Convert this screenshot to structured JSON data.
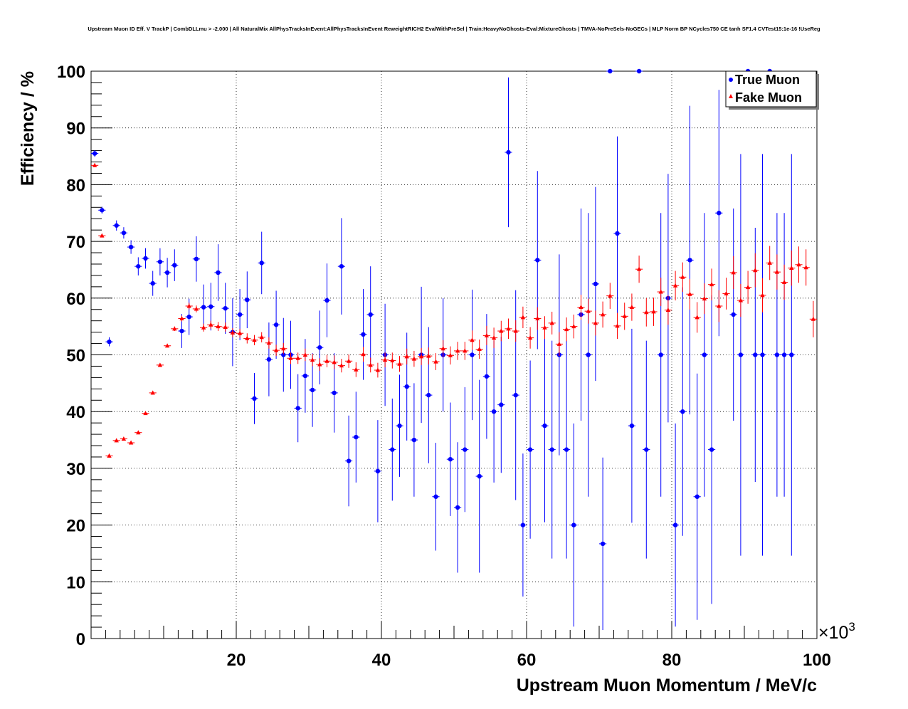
{
  "chart_data": {
    "type": "scatter",
    "title": "Upstream Muon ID Eff. V TrackP | CombDLLmu > -2.000 | All NaturalMix AllPhysTracksInEvent:AllPhysTracksInEvent ReweightRICH2 EvalWithPreSel | Train:HeavyNoGhosts-Eval:MixtureGhosts | TMVA-NoPreSels-NoGECs | MLP Norm BP NCycles750 CE tanh SF1.4 CVTest15:1e-16 !UseReg",
    "xlabel": "Upstream Muon Momentum / MeV/c",
    "ylabel": "Efficiency / %",
    "x_multiplier": "×10",
    "x_multiplier_exp": "3",
    "xlim": [
      0,
      100
    ],
    "ylim": [
      0,
      100
    ],
    "x_ticks": [
      "20",
      "40",
      "60",
      "80",
      "100"
    ],
    "y_ticks": [
      "0",
      "10",
      "20",
      "30",
      "40",
      "50",
      "60",
      "70",
      "80",
      "90",
      "100"
    ],
    "grid": true,
    "legend_position": "top-right",
    "bin_width": 1,
    "series": [
      {
        "name": "True Muon",
        "color": "#0000ff",
        "marker": "circle",
        "points": [
          {
            "x": 0.5,
            "y": 85.5,
            "err": 0.6
          },
          {
            "x": 1.5,
            "y": 75.5,
            "err": 0.6
          },
          {
            "x": 2.5,
            "y": 52.3,
            "err": 0.8
          },
          {
            "x": 3.5,
            "y": 72.8,
            "err": 0.9
          },
          {
            "x": 4.5,
            "y": 71.5,
            "err": 1.0
          },
          {
            "x": 5.5,
            "y": 69.0,
            "err": 1.2
          },
          {
            "x": 6.5,
            "y": 65.6,
            "err": 1.6
          },
          {
            "x": 7.5,
            "y": 67.0,
            "err": 1.8
          },
          {
            "x": 8.5,
            "y": 62.6,
            "err": 2.2
          },
          {
            "x": 9.5,
            "y": 66.4,
            "err": 2.4
          },
          {
            "x": 10.5,
            "y": 64.5,
            "err": 2.6
          },
          {
            "x": 11.5,
            "y": 65.8,
            "err": 2.8
          },
          {
            "x": 12.5,
            "y": 54.2,
            "err": 3.0
          },
          {
            "x": 13.5,
            "y": 56.7,
            "err": 3.2
          },
          {
            "x": 14.5,
            "y": 66.9,
            "err": 4.0
          },
          {
            "x": 15.5,
            "y": 58.4,
            "err": 4.0
          },
          {
            "x": 16.5,
            "y": 58.5,
            "err": 4.2
          },
          {
            "x": 17.5,
            "y": 64.5,
            "err": 5.0
          },
          {
            "x": 18.5,
            "y": 58.2,
            "err": 4.5
          },
          {
            "x": 19.5,
            "y": 54.0,
            "err": 6.0
          },
          {
            "x": 20.5,
            "y": 57.1,
            "err": 4.5
          },
          {
            "x": 21.5,
            "y": 59.7,
            "err": 5.0
          },
          {
            "x": 22.5,
            "y": 42.3,
            "err": 4.5
          },
          {
            "x": 23.5,
            "y": 66.2,
            "err": 5.5
          },
          {
            "x": 24.5,
            "y": 49.2,
            "err": 6.5
          },
          {
            "x": 25.5,
            "y": 55.3,
            "err": 6.0
          },
          {
            "x": 26.5,
            "y": 50.0,
            "err": 6.5
          },
          {
            "x": 27.5,
            "y": 50.0,
            "err": 6.0
          },
          {
            "x": 28.5,
            "y": 40.6,
            "err": 6.0
          },
          {
            "x": 29.5,
            "y": 46.3,
            "err": 6.5
          },
          {
            "x": 30.5,
            "y": 43.8,
            "err": 6.5
          },
          {
            "x": 31.5,
            "y": 51.3,
            "err": 6.5
          },
          {
            "x": 32.5,
            "y": 59.6,
            "err": 6.5
          },
          {
            "x": 33.5,
            "y": 43.3,
            "err": 7.0
          },
          {
            "x": 34.5,
            "y": 65.6,
            "err": 8.5
          },
          {
            "x": 35.5,
            "y": 31.3,
            "err": 8.0
          },
          {
            "x": 36.5,
            "y": 35.5,
            "err": 8.0
          },
          {
            "x": 37.5,
            "y": 53.6,
            "err": 8.0
          },
          {
            "x": 38.5,
            "y": 57.1,
            "err": 8.5
          },
          {
            "x": 39.5,
            "y": 29.5,
            "err": 9.0
          },
          {
            "x": 40.5,
            "y": 50.0,
            "err": 9.0
          },
          {
            "x": 41.5,
            "y": 33.3,
            "err": 9.0
          },
          {
            "x": 42.5,
            "y": 37.5,
            "err": 9.0
          },
          {
            "x": 43.5,
            "y": 44.4,
            "err": 9.5
          },
          {
            "x": 44.5,
            "y": 35.0,
            "err": 10.0
          },
          {
            "x": 45.5,
            "y": 50.0,
            "err": 12.0
          },
          {
            "x": 46.5,
            "y": 42.9,
            "err": 12.0
          },
          {
            "x": 47.5,
            "y": 25.0,
            "err": 9.5
          },
          {
            "x": 48.5,
            "y": 50.0,
            "err": 10.0
          },
          {
            "x": 49.5,
            "y": 31.6,
            "err": 10.0
          },
          {
            "x": 50.5,
            "y": 23.1,
            "err": 11.5
          },
          {
            "x": 51.5,
            "y": 33.3,
            "err": 11.0
          },
          {
            "x": 52.5,
            "y": 50.0,
            "err": 11.5
          },
          {
            "x": 53.5,
            "y": 28.6,
            "err": 17.0
          },
          {
            "x": 54.5,
            "y": 46.2,
            "err": 11.0
          },
          {
            "x": 55.5,
            "y": 40.0,
            "err": 12.5
          },
          {
            "x": 56.5,
            "y": 41.2,
            "err": 12.0
          },
          {
            "x": 57.5,
            "y": 85.7,
            "err": 13.2
          },
          {
            "x": 58.5,
            "y": 42.9,
            "err": 18.5
          },
          {
            "x": 59.5,
            "y": 20.0,
            "err": 12.6
          },
          {
            "x": 60.5,
            "y": 33.3,
            "err": 15.7
          },
          {
            "x": 61.5,
            "y": 66.7,
            "err": 15.7
          },
          {
            "x": 62.5,
            "y": 37.5,
            "err": 17.0
          },
          {
            "x": 63.5,
            "y": 33.3,
            "err": 19.2
          },
          {
            "x": 64.5,
            "y": 50.0,
            "err": 17.7
          },
          {
            "x": 65.5,
            "y": 33.3,
            "err": 19.2
          },
          {
            "x": 66.5,
            "y": 20.0,
            "err": 17.9
          },
          {
            "x": 67.5,
            "y": 57.1,
            "err": 18.7
          },
          {
            "x": 68.5,
            "y": 50.0,
            "err": 25.0
          },
          {
            "x": 69.5,
            "y": 62.5,
            "err": 17.1
          },
          {
            "x": 70.5,
            "y": 16.7,
            "err": 15.2
          },
          {
            "x": 71.5,
            "y": 100.0,
            "err": 0
          },
          {
            "x": 72.5,
            "y": 71.4,
            "err": 17.1
          },
          {
            "x": 74.5,
            "y": 37.5,
            "err": 17.1
          },
          {
            "x": 75.5,
            "y": 100.0,
            "err": 0
          },
          {
            "x": 76.5,
            "y": 33.3,
            "err": 19.2
          },
          {
            "x": 78.5,
            "y": 50.0,
            "err": 25.0
          },
          {
            "x": 79.5,
            "y": 60.0,
            "err": 21.9
          },
          {
            "x": 80.5,
            "y": 20.0,
            "err": 17.9
          },
          {
            "x": 81.5,
            "y": 40.0,
            "err": 21.9
          },
          {
            "x": 82.5,
            "y": 66.7,
            "err": 27.2
          },
          {
            "x": 83.5,
            "y": 25.0,
            "err": 21.7
          },
          {
            "x": 84.5,
            "y": 50.0,
            "err": 25.0
          },
          {
            "x": 85.5,
            "y": 33.3,
            "err": 27.2
          },
          {
            "x": 86.5,
            "y": 75.0,
            "err": 21.7
          },
          {
            "x": 88.5,
            "y": 57.1,
            "err": 18.7
          },
          {
            "x": 89.5,
            "y": 50.0,
            "err": 35.4
          },
          {
            "x": 90.5,
            "y": 100.0,
            "err": 0
          },
          {
            "x": 91.5,
            "y": 50.0,
            "err": 22.4
          },
          {
            "x": 92.5,
            "y": 50.0,
            "err": 35.4
          },
          {
            "x": 93.5,
            "y": 100.0,
            "err": 0
          },
          {
            "x": 94.5,
            "y": 50.0,
            "err": 25.0
          },
          {
            "x": 95.5,
            "y": 50.0,
            "err": 25.0
          },
          {
            "x": 96.5,
            "y": 50.0,
            "err": 35.4
          }
        ]
      },
      {
        "name": "Fake Muon",
        "color": "#ff0000",
        "marker": "triangle",
        "points": [
          {
            "x": 0.5,
            "y": 83.4,
            "err": 0.3
          },
          {
            "x": 1.5,
            "y": 71.0,
            "err": 0.3
          },
          {
            "x": 2.5,
            "y": 32.2,
            "err": 0.3
          },
          {
            "x": 3.5,
            "y": 34.9,
            "err": 0.3
          },
          {
            "x": 4.5,
            "y": 35.2,
            "err": 0.3
          },
          {
            "x": 5.5,
            "y": 34.5,
            "err": 0.3
          },
          {
            "x": 6.5,
            "y": 36.3,
            "err": 0.3
          },
          {
            "x": 7.5,
            "y": 39.7,
            "err": 0.3
          },
          {
            "x": 8.5,
            "y": 43.3,
            "err": 0.3
          },
          {
            "x": 9.5,
            "y": 48.2,
            "err": 0.3
          },
          {
            "x": 10.5,
            "y": 51.6,
            "err": 0.3
          },
          {
            "x": 11.5,
            "y": 54.6,
            "err": 0.4
          },
          {
            "x": 12.5,
            "y": 56.4,
            "err": 0.5
          },
          {
            "x": 13.5,
            "y": 58.6,
            "err": 0.6
          },
          {
            "x": 14.5,
            "y": 58.1,
            "err": 0.6
          },
          {
            "x": 15.5,
            "y": 54.8,
            "err": 0.7
          },
          {
            "x": 16.5,
            "y": 55.3,
            "err": 0.7
          },
          {
            "x": 17.5,
            "y": 55.0,
            "err": 0.8
          },
          {
            "x": 18.5,
            "y": 54.9,
            "err": 0.8
          },
          {
            "x": 19.5,
            "y": 53.9,
            "err": 0.8
          },
          {
            "x": 20.5,
            "y": 53.8,
            "err": 0.8
          },
          {
            "x": 21.5,
            "y": 52.9,
            "err": 0.9
          },
          {
            "x": 22.5,
            "y": 52.6,
            "err": 0.9
          },
          {
            "x": 23.5,
            "y": 53.1,
            "err": 0.9
          },
          {
            "x": 24.5,
            "y": 52.1,
            "err": 1.0
          },
          {
            "x": 25.5,
            "y": 50.8,
            "err": 1.0
          },
          {
            "x": 26.5,
            "y": 51.1,
            "err": 1.0
          },
          {
            "x": 27.5,
            "y": 49.4,
            "err": 1.0
          },
          {
            "x": 28.5,
            "y": 49.4,
            "err": 1.0
          },
          {
            "x": 29.5,
            "y": 50.0,
            "err": 1.1
          },
          {
            "x": 30.5,
            "y": 49.1,
            "err": 1.1
          },
          {
            "x": 31.5,
            "y": 48.3,
            "err": 1.1
          },
          {
            "x": 32.5,
            "y": 48.9,
            "err": 1.1
          },
          {
            "x": 33.5,
            "y": 48.7,
            "err": 1.2
          },
          {
            "x": 34.5,
            "y": 48.1,
            "err": 1.2
          },
          {
            "x": 35.5,
            "y": 48.9,
            "err": 1.2
          },
          {
            "x": 36.5,
            "y": 47.4,
            "err": 1.3
          },
          {
            "x": 37.5,
            "y": 50.1,
            "err": 1.3
          },
          {
            "x": 38.5,
            "y": 48.2,
            "err": 1.3
          },
          {
            "x": 39.5,
            "y": 47.3,
            "err": 1.3
          },
          {
            "x": 40.5,
            "y": 49.1,
            "err": 1.3
          },
          {
            "x": 41.5,
            "y": 49.0,
            "err": 1.4
          },
          {
            "x": 42.5,
            "y": 48.4,
            "err": 1.4
          },
          {
            "x": 43.5,
            "y": 49.7,
            "err": 1.4
          },
          {
            "x": 44.5,
            "y": 49.3,
            "err": 1.4
          },
          {
            "x": 45.5,
            "y": 49.7,
            "err": 1.5
          },
          {
            "x": 46.5,
            "y": 49.8,
            "err": 1.5
          },
          {
            "x": 47.5,
            "y": 48.8,
            "err": 1.5
          },
          {
            "x": 48.5,
            "y": 51.1,
            "err": 1.5
          },
          {
            "x": 49.5,
            "y": 49.9,
            "err": 1.6
          },
          {
            "x": 50.5,
            "y": 50.7,
            "err": 1.6
          },
          {
            "x": 51.5,
            "y": 50.7,
            "err": 1.6
          },
          {
            "x": 52.5,
            "y": 52.6,
            "err": 1.7
          },
          {
            "x": 53.5,
            "y": 51.0,
            "err": 1.7
          },
          {
            "x": 54.5,
            "y": 53.4,
            "err": 1.7
          },
          {
            "x": 55.5,
            "y": 53.0,
            "err": 1.8
          },
          {
            "x": 56.5,
            "y": 54.2,
            "err": 1.8
          },
          {
            "x": 57.5,
            "y": 54.6,
            "err": 1.8
          },
          {
            "x": 58.5,
            "y": 54.2,
            "err": 1.9
          },
          {
            "x": 59.5,
            "y": 56.6,
            "err": 1.9
          },
          {
            "x": 60.5,
            "y": 53.0,
            "err": 1.9
          },
          {
            "x": 61.5,
            "y": 56.4,
            "err": 2.0
          },
          {
            "x": 62.5,
            "y": 54.8,
            "err": 2.0
          },
          {
            "x": 63.5,
            "y": 55.6,
            "err": 2.0
          },
          {
            "x": 64.5,
            "y": 51.9,
            "err": 2.1
          },
          {
            "x": 65.5,
            "y": 54.5,
            "err": 2.1
          },
          {
            "x": 66.5,
            "y": 55.0,
            "err": 2.1
          },
          {
            "x": 67.5,
            "y": 58.4,
            "err": 2.2
          },
          {
            "x": 68.5,
            "y": 57.7,
            "err": 2.2
          },
          {
            "x": 69.5,
            "y": 55.6,
            "err": 2.2
          },
          {
            "x": 70.5,
            "y": 57.1,
            "err": 2.3
          },
          {
            "x": 71.5,
            "y": 60.4,
            "err": 2.3
          },
          {
            "x": 72.5,
            "y": 55.1,
            "err": 2.3
          },
          {
            "x": 73.5,
            "y": 56.8,
            "err": 2.4
          },
          {
            "x": 74.5,
            "y": 58.4,
            "err": 2.4
          },
          {
            "x": 75.5,
            "y": 65.1,
            "err": 2.4
          },
          {
            "x": 76.5,
            "y": 57.5,
            "err": 2.5
          },
          {
            "x": 77.5,
            "y": 57.6,
            "err": 2.5
          },
          {
            "x": 78.5,
            "y": 61.1,
            "err": 2.5
          },
          {
            "x": 79.5,
            "y": 57.9,
            "err": 2.6
          },
          {
            "x": 80.5,
            "y": 62.2,
            "err": 2.6
          },
          {
            "x": 81.5,
            "y": 63.7,
            "err": 2.6
          },
          {
            "x": 82.5,
            "y": 60.7,
            "err": 2.7
          },
          {
            "x": 83.5,
            "y": 56.6,
            "err": 2.7
          },
          {
            "x": 84.5,
            "y": 59.9,
            "err": 2.7
          },
          {
            "x": 85.5,
            "y": 62.4,
            "err": 2.8
          },
          {
            "x": 86.5,
            "y": 58.6,
            "err": 2.8
          },
          {
            "x": 87.5,
            "y": 60.8,
            "err": 2.8
          },
          {
            "x": 88.5,
            "y": 64.5,
            "err": 2.9
          },
          {
            "x": 89.5,
            "y": 59.6,
            "err": 2.9
          },
          {
            "x": 90.5,
            "y": 61.9,
            "err": 2.9
          },
          {
            "x": 91.5,
            "y": 64.9,
            "err": 3.0
          },
          {
            "x": 92.5,
            "y": 60.5,
            "err": 3.0
          },
          {
            "x": 93.5,
            "y": 66.2,
            "err": 3.0
          },
          {
            "x": 94.5,
            "y": 64.6,
            "err": 3.1
          },
          {
            "x": 95.5,
            "y": 62.8,
            "err": 3.1
          },
          {
            "x": 96.5,
            "y": 65.3,
            "err": 3.1
          },
          {
            "x": 97.5,
            "y": 65.9,
            "err": 3.2
          },
          {
            "x": 98.5,
            "y": 65.4,
            "err": 3.2
          },
          {
            "x": 99.5,
            "y": 56.3,
            "err": 3.2
          }
        ]
      }
    ]
  }
}
